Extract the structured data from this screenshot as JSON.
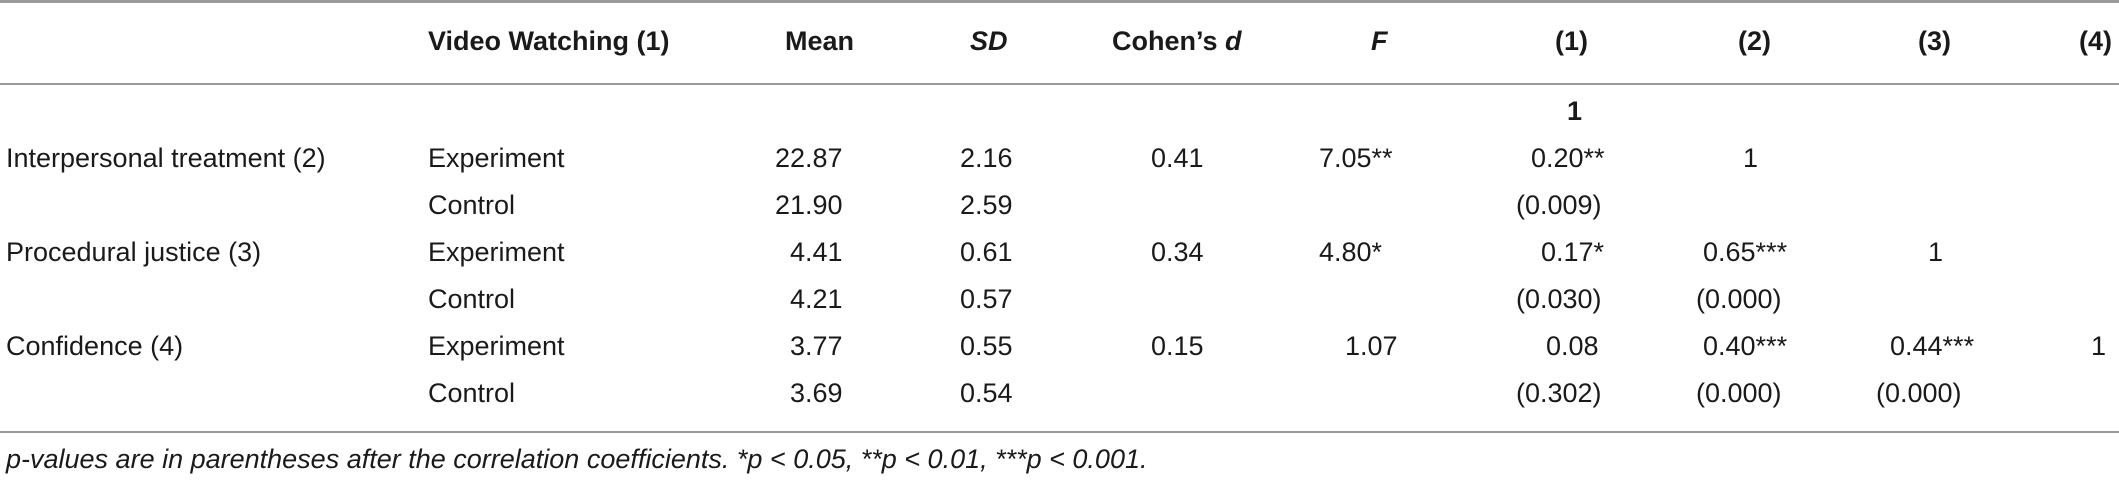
{
  "table": {
    "headers": {
      "video": "Video Watching (1)",
      "mean": "Mean",
      "sd": "SD",
      "cohen_prefix": "Cohen’s ",
      "cohen_d": "d",
      "f": "F",
      "c1": "(1)",
      "c2": "(2)",
      "c3": "(3)",
      "c4": "(4)"
    },
    "first_row": {
      "c1": "1"
    },
    "rows": [
      {
        "label": "Interpersonal treatment (2)",
        "group": "Experiment",
        "mean": "22.87",
        "sd": "2.16",
        "cohen_d": "0.41",
        "f": "7.05**",
        "c1": "0.20**",
        "c2": "1",
        "c3": "",
        "c4": ""
      },
      {
        "label": "",
        "group": "Control",
        "mean": "21.90",
        "sd": "2.59",
        "cohen_d": "",
        "f": "",
        "c1": "(0.009)",
        "c2": "",
        "c3": "",
        "c4": ""
      },
      {
        "label": "Procedural justice (3)",
        "group": "Experiment",
        "mean": "4.41",
        "sd": "0.61",
        "cohen_d": "0.34",
        "f": "4.80*",
        "c1": "0.17*",
        "c2": "0.65***",
        "c3": "1",
        "c4": ""
      },
      {
        "label": "",
        "group": "Control",
        "mean": "4.21",
        "sd": "0.57",
        "cohen_d": "",
        "f": "",
        "c1": "(0.030)",
        "c2": "(0.000)",
        "c3": "",
        "c4": ""
      },
      {
        "label": "Confidence (4)",
        "group": "Experiment",
        "mean": "3.77",
        "sd": "0.55",
        "cohen_d": "0.15",
        "f": "1.07",
        "c1": "0.08",
        "c2": "0.40***",
        "c3": "0.44***",
        "c4": "1"
      },
      {
        "label": "",
        "group": "Control",
        "mean": "3.69",
        "sd": "0.54",
        "cohen_d": "",
        "f": "",
        "c1": "(0.302)",
        "c2": "(0.000)",
        "c3": "(0.000)",
        "c4": ""
      }
    ]
  },
  "footnote": "p-values are in parentheses after the correlation coefficients. *p < 0.05, **p < 0.01, ***p < 0.001."
}
